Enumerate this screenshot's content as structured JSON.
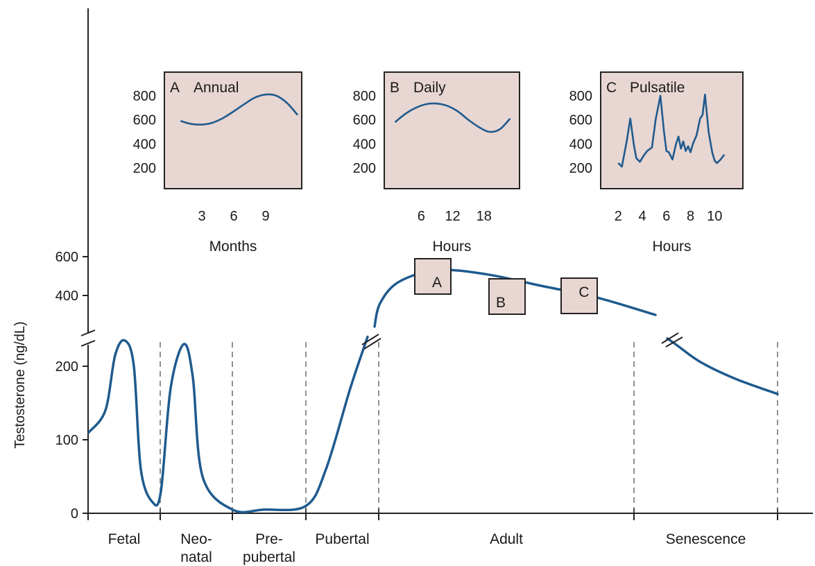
{
  "chart_data": {
    "main": {
      "type": "line",
      "ylabel": "Testosterone (ng/dL)",
      "y_ticks_lower": [
        0,
        100,
        200
      ],
      "y_ticks_upper": [
        400,
        600
      ],
      "axis_break": true,
      "stages": [
        "Fetal",
        "Neo-|natal",
        "Pre-|pubertal",
        "Pubertal",
        "Adult",
        "Senescence"
      ],
      "stage_values": {
        "Fetal": {
          "peak": 235,
          "end": 15
        },
        "Neo-natal": {
          "peak": 230,
          "end": 5
        },
        "Pre-pubertal": {
          "level": 5
        },
        "Pubertal": {
          "end": 240
        },
        "Adult": {
          "peak": 530,
          "end": 300
        },
        "Senescence": {
          "end": 165
        }
      },
      "markers": [
        "A",
        "B",
        "C"
      ]
    },
    "insets": [
      {
        "id": "A",
        "letter": "A",
        "title": "Annual",
        "xlabel": "Months",
        "type": "line",
        "x_ticks": [
          3,
          6,
          9
        ],
        "y_ticks": [
          200,
          400,
          600,
          800
        ],
        "xlim": [
          0,
          12
        ],
        "ylim": [
          100,
          900
        ],
        "x": [
          1,
          2,
          3,
          4,
          5,
          6,
          7,
          8,
          9,
          10,
          11,
          12
        ],
        "y": [
          590,
          565,
          560,
          575,
          615,
          670,
          730,
          785,
          810,
          800,
          740,
          640
        ]
      },
      {
        "id": "B",
        "letter": "B",
        "title": "Daily",
        "xlabel": "Hours",
        "type": "line",
        "x_ticks": [
          6,
          12,
          18
        ],
        "y_ticks": [
          200,
          400,
          600,
          800
        ],
        "xlim": [
          0,
          24
        ],
        "ylim": [
          100,
          900
        ],
        "x": [
          1,
          3,
          5,
          7,
          9,
          11,
          13,
          15,
          17,
          19,
          21,
          23
        ],
        "y": [
          580,
          650,
          700,
          730,
          735,
          715,
          670,
          600,
          540,
          500,
          520,
          610
        ]
      },
      {
        "id": "C",
        "letter": "C",
        "title": "Pulsatile",
        "xlabel": "Hours",
        "type": "line",
        "x_ticks": [
          2,
          4,
          6,
          8,
          10
        ],
        "y_ticks": [
          200,
          400,
          600,
          800
        ],
        "xlim": [
          1,
          12
        ],
        "ylim": [
          100,
          900
        ],
        "x": [
          2.0,
          2.3,
          2.7,
          3.0,
          3.3,
          3.5,
          3.8,
          4.1,
          4.4,
          4.8,
          5.1,
          5.5,
          5.8,
          6.0,
          6.2,
          6.5,
          6.8,
          7.0,
          7.2,
          7.4,
          7.6,
          7.8,
          8.0,
          8.2,
          8.5,
          8.8,
          9.0,
          9.2,
          9.5,
          9.8,
          10.0,
          10.2,
          10.5,
          10.8
        ],
        "y": [
          240,
          210,
          420,
          610,
          390,
          280,
          250,
          300,
          340,
          370,
          600,
          800,
          500,
          340,
          330,
          270,
          400,
          460,
          360,
          420,
          340,
          380,
          330,
          400,
          470,
          610,
          640,
          810,
          500,
          330,
          260,
          240,
          270,
          310
        ]
      }
    ]
  }
}
